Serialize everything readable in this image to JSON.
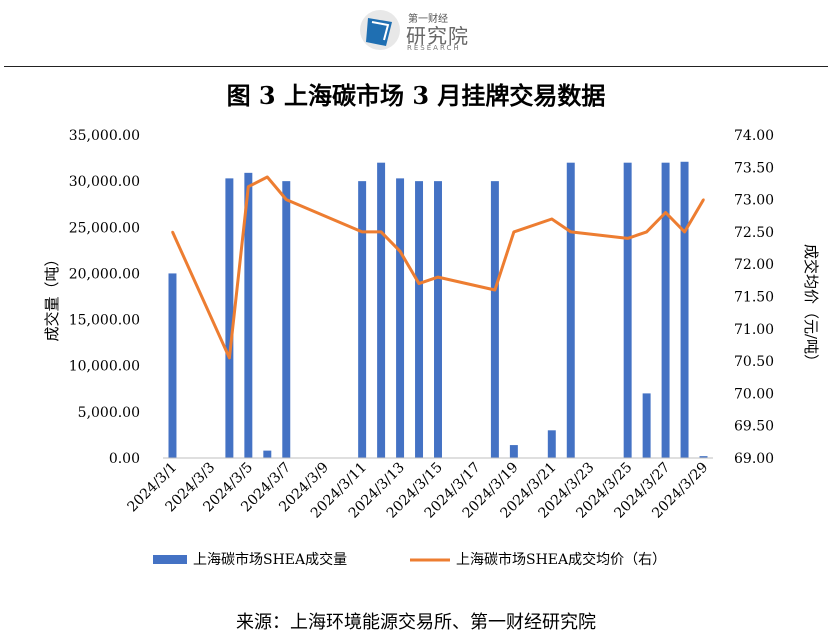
{
  "header": {
    "logo_line1": "第一财经",
    "logo_line2": "研究院",
    "logo_line3": "RESEARCH",
    "logo_icon": "logo-icon"
  },
  "title": "图 3  上海碳市场 3 月挂牌交易数据",
  "source": "来源：上海环境能源交易所、第一财经研究院",
  "colors": {
    "bar": "#4472c4",
    "line": "#ed7d31"
  },
  "chart_data": {
    "type": "bar+line",
    "x": [
      "2024/3/1",
      "2024/3/2",
      "2024/3/3",
      "2024/3/4",
      "2024/3/5",
      "2024/3/6",
      "2024/3/7",
      "2024/3/8",
      "2024/3/9",
      "2024/3/10",
      "2024/3/11",
      "2024/3/12",
      "2024/3/13",
      "2024/3/14",
      "2024/3/15",
      "2024/3/16",
      "2024/3/17",
      "2024/3/18",
      "2024/3/19",
      "2024/3/20",
      "2024/3/21",
      "2024/3/22",
      "2024/3/23",
      "2024/3/24",
      "2024/3/25",
      "2024/3/26",
      "2024/3/27",
      "2024/3/28",
      "2024/3/29"
    ],
    "x_tick_labels": [
      "2024/3/1",
      "2024/3/3",
      "2024/3/5",
      "2024/3/7",
      "2024/3/9",
      "2024/3/11",
      "2024/3/13",
      "2024/3/15",
      "2024/3/17",
      "2024/3/19",
      "2024/3/21",
      "2024/3/23",
      "2024/3/25",
      "2024/3/27",
      "2024/3/29"
    ],
    "series": [
      {
        "name": "上海碳市场SHEA成交量",
        "type": "bar",
        "axis": "left",
        "points": [
          {
            "x": "2024/3/1",
            "y": 20000
          },
          {
            "x": "2024/3/4",
            "y": 30300
          },
          {
            "x": "2024/3/5",
            "y": 30900
          },
          {
            "x": "2024/3/6",
            "y": 800
          },
          {
            "x": "2024/3/7",
            "y": 30000
          },
          {
            "x": "2024/3/11",
            "y": 30000
          },
          {
            "x": "2024/3/12",
            "y": 32000
          },
          {
            "x": "2024/3/13",
            "y": 30300
          },
          {
            "x": "2024/3/14",
            "y": 30000
          },
          {
            "x": "2024/3/15",
            "y": 30000
          },
          {
            "x": "2024/3/18",
            "y": 30000
          },
          {
            "x": "2024/3/19",
            "y": 1400
          },
          {
            "x": "2024/3/21",
            "y": 3000
          },
          {
            "x": "2024/3/22",
            "y": 32000
          },
          {
            "x": "2024/3/25",
            "y": 32000
          },
          {
            "x": "2024/3/26",
            "y": 7000
          },
          {
            "x": "2024/3/27",
            "y": 32000
          },
          {
            "x": "2024/3/28",
            "y": 32100
          },
          {
            "x": "2024/3/29",
            "y": 200
          }
        ]
      },
      {
        "name": "上海碳市场SHEA成交均价（右）",
        "type": "line",
        "axis": "right",
        "points": [
          {
            "x": "2024/3/1",
            "y": 72.5
          },
          {
            "x": "2024/3/4",
            "y": 70.55
          },
          {
            "x": "2024/3/5",
            "y": 73.2
          },
          {
            "x": "2024/3/6",
            "y": 73.35
          },
          {
            "x": "2024/3/7",
            "y": 73.0
          },
          {
            "x": "2024/3/11",
            "y": 72.5
          },
          {
            "x": "2024/3/12",
            "y": 72.5
          },
          {
            "x": "2024/3/13",
            "y": 72.2
          },
          {
            "x": "2024/3/14",
            "y": 71.7
          },
          {
            "x": "2024/3/15",
            "y": 71.8
          },
          {
            "x": "2024/3/18",
            "y": 71.6
          },
          {
            "x": "2024/3/19",
            "y": 72.5
          },
          {
            "x": "2024/3/21",
            "y": 72.7
          },
          {
            "x": "2024/3/22",
            "y": 72.5
          },
          {
            "x": "2024/3/25",
            "y": 72.4
          },
          {
            "x": "2024/3/26",
            "y": 72.5
          },
          {
            "x": "2024/3/27",
            "y": 72.8
          },
          {
            "x": "2024/3/28",
            "y": 72.5
          },
          {
            "x": "2024/3/29",
            "y": 73.0
          }
        ]
      }
    ],
    "ylabel": "成交量（吨）",
    "ylabel_right": "成交均价（元/吨）",
    "ylim": [
      0,
      35000
    ],
    "ylim_right": [
      69.0,
      74.0
    ],
    "y_ticks": [
      "0.00",
      "5,000.00",
      "10,000.00",
      "15,000.00",
      "20,000.00",
      "25,000.00",
      "30,000.00",
      "35,000.00"
    ],
    "y_ticks_right": [
      "69.00",
      "69.50",
      "70.00",
      "70.50",
      "71.00",
      "71.50",
      "72.00",
      "72.50",
      "73.00",
      "73.50",
      "74.00"
    ],
    "grid": false,
    "legend": "bottom"
  }
}
